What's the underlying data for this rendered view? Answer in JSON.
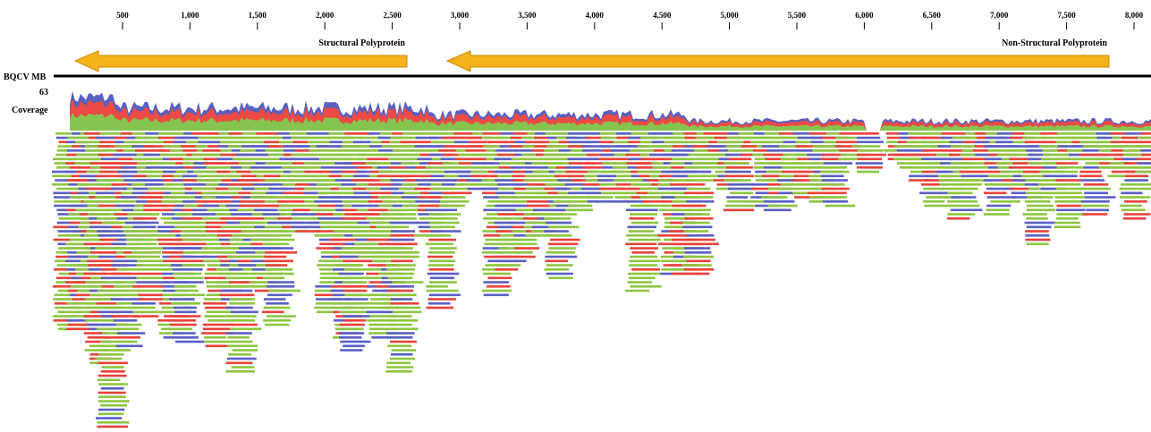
{
  "ruler": {
    "ticks": [
      "500",
      "1,000",
      "1,500",
      "2,000",
      "2,500",
      "3,000",
      "3,500",
      "4,000",
      "4,500",
      "5,000",
      "5,500",
      "6,000",
      "6,500",
      "7,000",
      "7,500",
      "8,000"
    ]
  },
  "annotations": [
    {
      "label": "Structural Polyprotein"
    },
    {
      "label": "Non-Structural Polyprotein"
    }
  ],
  "track": {
    "name": "BQCV MB",
    "max_coverage": "63",
    "coverage_label": "Coverage"
  }
}
